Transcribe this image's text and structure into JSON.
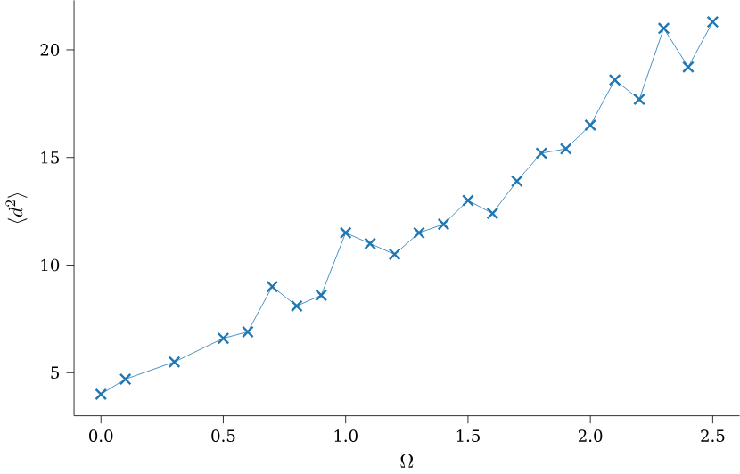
{
  "chart_data": {
    "type": "line",
    "xlabel": "\\Omega",
    "ylabel": "\\langle d^2\\rangle",
    "marker": "cross",
    "color": "#1f77b4",
    "x": [
      0,
      0.1,
      0.3,
      0.5,
      0.6,
      0.7,
      0.8,
      0.9,
      1.0,
      1.1,
      1.2,
      1.3,
      1.4,
      1.5,
      1.6,
      1.7,
      1.8,
      1.9,
      2.0,
      2.1,
      2.2,
      2.3,
      2.4,
      2.5
    ],
    "values": [
      4.0,
      4.7,
      5.5,
      6.6,
      6.9,
      9.0,
      8.1,
      8.6,
      11.5,
      11.0,
      10.5,
      11.5,
      11.9,
      13.0,
      12.4,
      13.9,
      15.2,
      15.4,
      16.5,
      18.6,
      17.7,
      21.0,
      19.2,
      21.3
    ],
    "xlim": [
      -0.11,
      2.61
    ],
    "ylim": [
      3,
      22.3
    ],
    "xticks": [
      {
        "value": 0,
        "label": "0.0"
      },
      {
        "value": 0.5,
        "label": "0.5"
      },
      {
        "value": 1,
        "label": "1.0"
      },
      {
        "value": 1.5,
        "label": "1.5"
      },
      {
        "value": 2,
        "label": "2.0"
      },
      {
        "value": 2.5,
        "label": "2.5"
      }
    ],
    "yticks": [
      5,
      10,
      15,
      20
    ]
  }
}
